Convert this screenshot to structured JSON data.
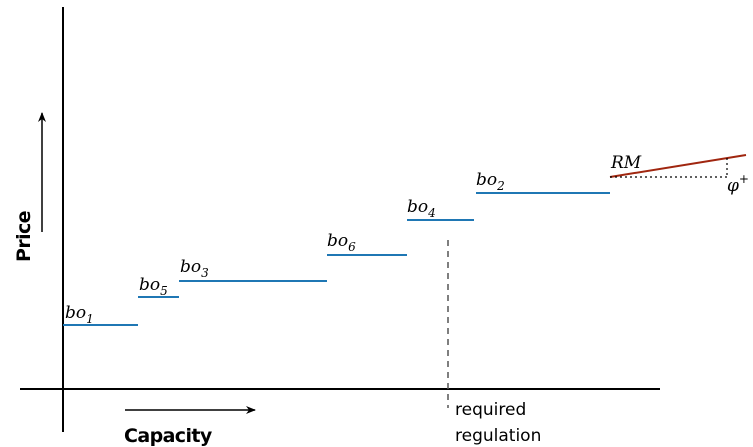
{
  "axes": {
    "x_title": "Capacity",
    "y_title": "Price"
  },
  "colors": {
    "bid_step": "#1f77b4",
    "rm_line": "#a0260f",
    "axis": "#000000",
    "guide": "#555555"
  },
  "bids": [
    {
      "id": "bo1",
      "base": "bo",
      "sub": "1"
    },
    {
      "id": "bo5",
      "base": "bo",
      "sub": "5"
    },
    {
      "id": "bo3",
      "base": "bo",
      "sub": "3"
    },
    {
      "id": "bo6",
      "base": "bo",
      "sub": "6"
    },
    {
      "id": "bo4",
      "base": "bo",
      "sub": "4"
    },
    {
      "id": "bo2",
      "base": "bo",
      "sub": "2"
    }
  ],
  "rm_label": "RM",
  "phi_label": {
    "base": "φ",
    "sup": "+"
  },
  "required_regulation": {
    "line1": "required",
    "line2": "regulation"
  }
}
